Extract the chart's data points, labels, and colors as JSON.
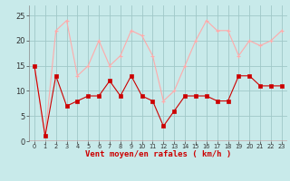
{
  "x": [
    0,
    1,
    2,
    3,
    4,
    5,
    6,
    7,
    8,
    9,
    10,
    11,
    12,
    13,
    14,
    15,
    16,
    17,
    18,
    19,
    20,
    21,
    22,
    23
  ],
  "wind_avg": [
    15,
    1,
    13,
    7,
    8,
    9,
    9,
    12,
    9,
    13,
    9,
    8,
    3,
    6,
    9,
    9,
    9,
    8,
    8,
    13,
    13,
    11,
    11,
    11
  ],
  "wind_gust": [
    15,
    1,
    22,
    24,
    13,
    15,
    20,
    15,
    17,
    22,
    21,
    17,
    8,
    10,
    15,
    20,
    24,
    22,
    22,
    17,
    20,
    19,
    20,
    22
  ],
  "line_avg_color": "#cc0000",
  "line_gust_color": "#ffaaaa",
  "bg_color": "#c8eaea",
  "grid_color": "#a0c8c8",
  "xlabel": "Vent moyen/en rafales ( km/h )",
  "xlabel_color": "#cc0000",
  "yticks": [
    0,
    5,
    10,
    15,
    20,
    25
  ],
  "ylim": [
    0,
    27
  ],
  "xlim": [
    -0.5,
    23.5
  ]
}
